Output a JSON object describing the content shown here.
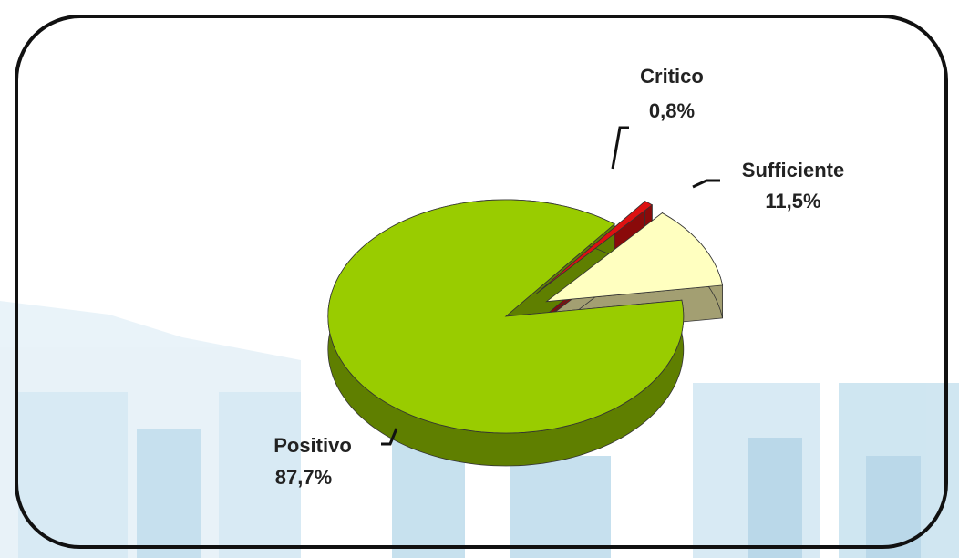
{
  "chart_data": {
    "type": "pie",
    "categories": [
      "Sufficiente",
      "Critico",
      "Positivo"
    ],
    "values": [
      11.5,
      0.8,
      87.7
    ],
    "value_labels": [
      "11,5%",
      "0,8%",
      "87,7%"
    ],
    "colors": [
      "#ffffc0",
      "#dd1111",
      "#99cc00"
    ],
    "side_colors": [
      "#a39f72",
      "#8a0a0a",
      "#5f7f00"
    ]
  }
}
